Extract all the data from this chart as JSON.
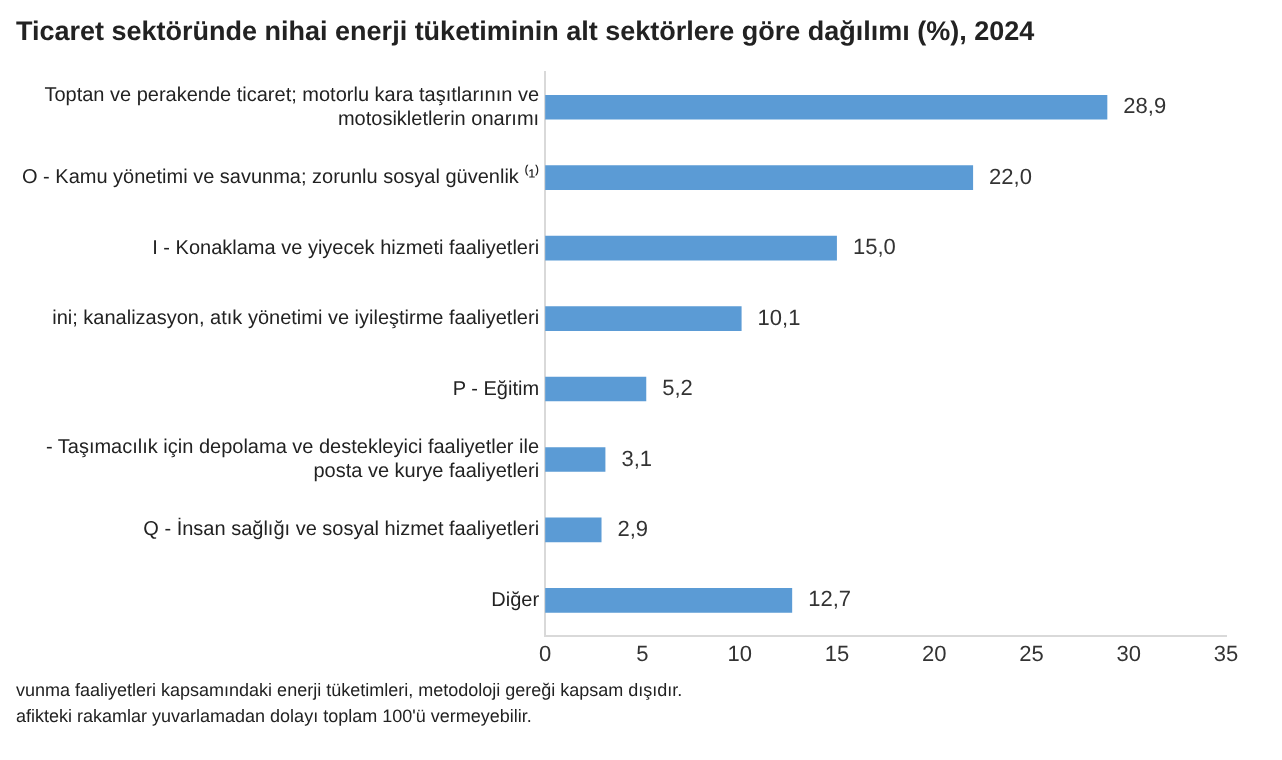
{
  "chart_data": {
    "type": "bar",
    "orientation": "horizontal",
    "title": "Ticaret sektöründe nihai enerji tüketiminin alt sektörlere göre dağılımı (%), 2024",
    "categories": [
      "Toptan ve perakende ticaret; motorlu kara taşıtlarının ve\nmotosikletlerin onarımı",
      "O - Kamu yönetimi ve savunma; zorunlu sosyal güvenlik ⁽¹⁾",
      "I - Konaklama ve yiyecek hizmeti faaliyetleri",
      "ini; kanalizasyon, atık yönetimi ve iyileştirme faaliyetleri",
      "P - Eğitim",
      "- Taşımacılık için depolama ve destekleyici faaliyetler ile\nposta ve kurye faaliyetleri",
      "Q - İnsan sağlığı ve sosyal hizmet faaliyetleri",
      "Diğer"
    ],
    "values": [
      28.9,
      22.0,
      15.0,
      10.1,
      5.2,
      3.1,
      2.9,
      12.7
    ],
    "value_labels": [
      "28,9",
      "22,0",
      "15,0",
      "10,1",
      "5,2",
      "3,1",
      "2,9",
      "12,7"
    ],
    "color": "#5b9bd5",
    "xlim": [
      0,
      35
    ],
    "xticks": [
      0,
      5,
      10,
      15,
      20,
      25,
      30,
      35
    ],
    "grid": false,
    "annotations": [
      "vunma faaliyetleri kapsamındaki enerji tüketimleri, metodoloji gereği kapsam dışıdır.",
      "afikteki rakamlar yuvarlamadan dolayı toplam 100'ü vermeyebilir."
    ]
  }
}
